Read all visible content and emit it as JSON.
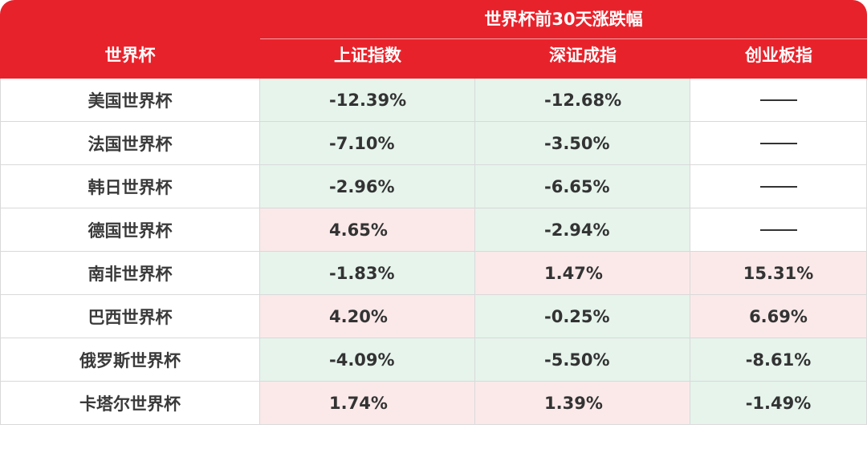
{
  "header": {
    "row_col_label": "世界杯",
    "group_label": "世界杯前30天涨跌幅",
    "columns": [
      "上证指数",
      "深证成指",
      "创业板指"
    ]
  },
  "colors": {
    "header_bg": "#e8222b",
    "negative_bg": "#e6f4ec",
    "positive_bg": "#fbe9e9"
  },
  "rows": [
    {
      "name": "美国世界杯",
      "values": [
        "-12.39%",
        "-12.68%",
        ""
      ]
    },
    {
      "name": "法国世界杯",
      "values": [
        "-7.10%",
        "-3.50%",
        ""
      ]
    },
    {
      "name": "韩日世界杯",
      "values": [
        "-2.96%",
        "-6.65%",
        ""
      ]
    },
    {
      "name": "德国世界杯",
      "values": [
        "4.65%",
        "-2.94%",
        ""
      ]
    },
    {
      "name": "南非世界杯",
      "values": [
        "-1.83%",
        "1.47%",
        "15.31%"
      ]
    },
    {
      "name": "巴西世界杯",
      "values": [
        "4.20%",
        "-0.25%",
        "6.69%"
      ]
    },
    {
      "name": "俄罗斯世界杯",
      "values": [
        "-4.09%",
        "-5.50%",
        "-8.61%"
      ]
    },
    {
      "name": "卡塔尔世界杯",
      "values": [
        "1.74%",
        "1.39%",
        "-1.49%"
      ]
    }
  ]
}
